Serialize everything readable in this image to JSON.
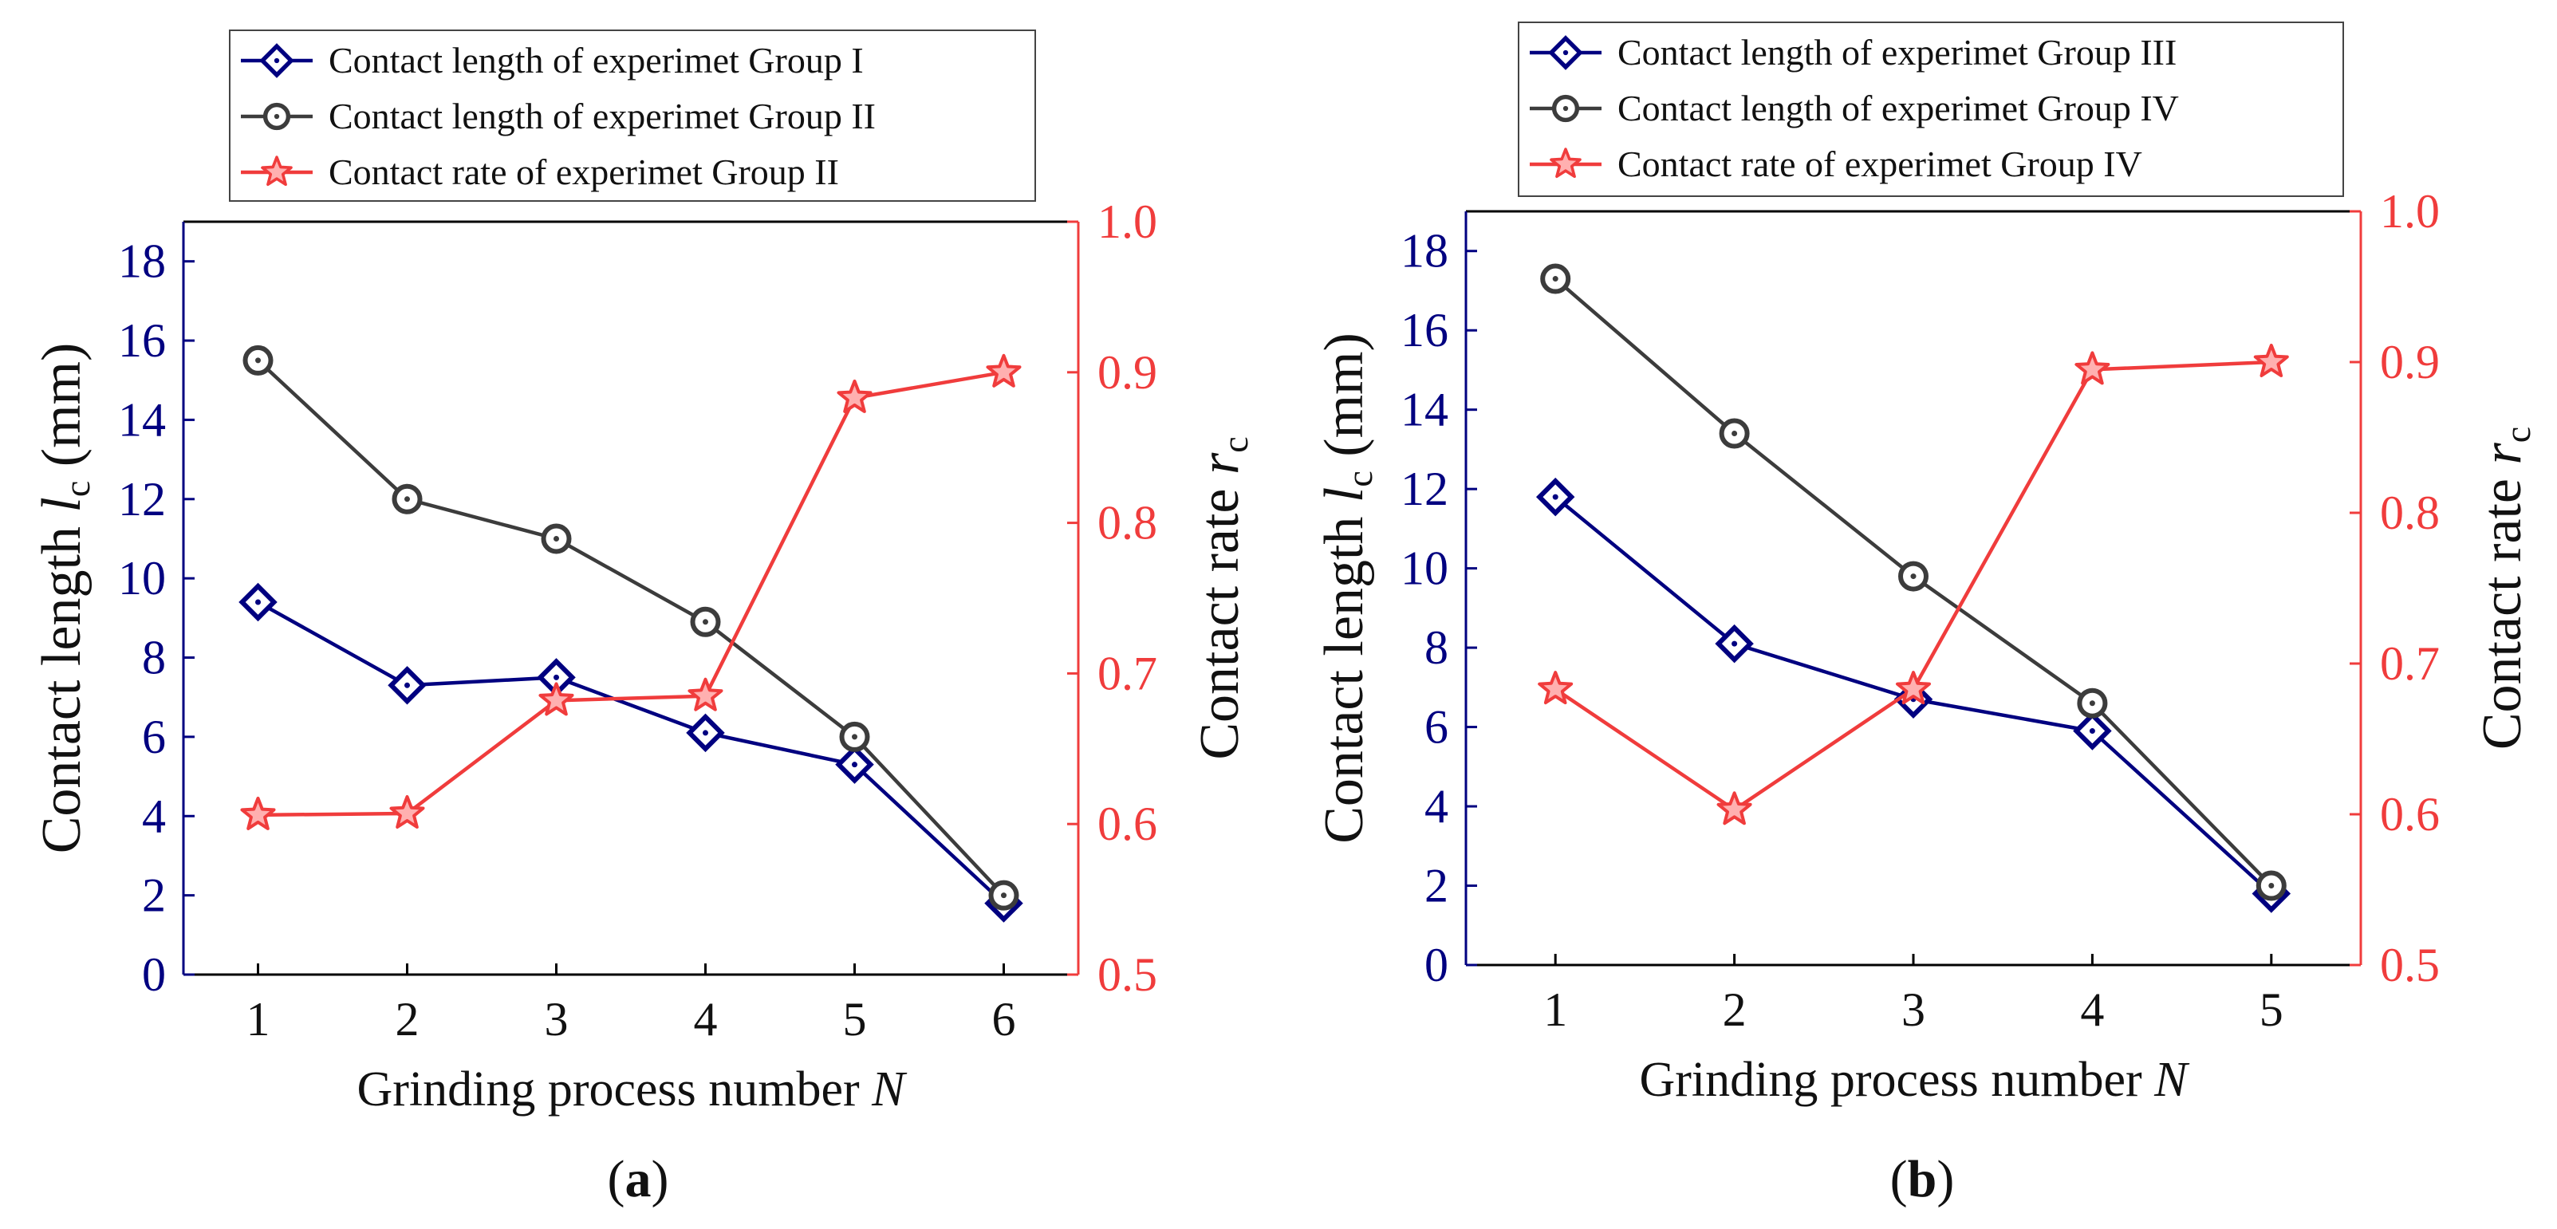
{
  "colors": {
    "group_primary": "#000080",
    "group_secondary": "#3c3c3c",
    "rate": "#f03c3c",
    "left_axis": "#000080",
    "right_axis": "#f03c3c",
    "frame": "#000000"
  },
  "chart_data": [
    {
      "panel": "a",
      "caption": {
        "open": "(",
        "letter": "a",
        "close": ")"
      },
      "type": "line",
      "x": [
        1,
        2,
        3,
        4,
        5,
        6
      ],
      "x_ticks": [
        1,
        2,
        3,
        4,
        5,
        6
      ],
      "xlim": [
        0.5,
        6.5
      ],
      "xlabel": {
        "text": "Grinding process number ",
        "var": "N"
      },
      "ylabel_left": {
        "text": "Contact length ",
        "var": "l",
        "sub": "c",
        "unit": " (mm)"
      },
      "ylim_left": [
        0,
        19
      ],
      "y_ticks_left": [
        0,
        2,
        4,
        6,
        8,
        10,
        12,
        14,
        16,
        18
      ],
      "ylabel_right": {
        "text": "Contact rate ",
        "var": "r",
        "sub": "c"
      },
      "ylim_right": [
        0.5,
        1.0
      ],
      "y_ticks_right": [
        "0.5",
        "0.6",
        "0.7",
        "0.8",
        "0.9",
        "1.0"
      ],
      "series": [
        {
          "name": "Contact length of experimet Group I",
          "axis": "left",
          "marker": "diamond",
          "color_key": "group_primary",
          "values": [
            9.4,
            7.3,
            7.5,
            6.1,
            5.3,
            1.8
          ]
        },
        {
          "name": "Contact length of experimet Group II",
          "axis": "left",
          "marker": "circle",
          "color_key": "group_secondary",
          "values": [
            15.5,
            12.0,
            11.0,
            8.9,
            6.0,
            2.0
          ]
        },
        {
          "name": "Contact rate of experimet Group II",
          "axis": "right",
          "marker": "star",
          "color_key": "rate",
          "values": [
            0.606,
            0.607,
            0.682,
            0.685,
            0.883,
            0.9
          ]
        }
      ],
      "legend": "top"
    },
    {
      "panel": "b",
      "caption": {
        "open": "(",
        "letter": "b",
        "close": ")"
      },
      "type": "line",
      "x": [
        1,
        2,
        3,
        4,
        5
      ],
      "x_ticks": [
        1,
        2,
        3,
        4,
        5
      ],
      "xlim": [
        0.5,
        5.5
      ],
      "xlabel": {
        "text": "Grinding process number ",
        "var": "N"
      },
      "ylabel_left": {
        "text": "Contact length ",
        "var": "l",
        "sub": "c",
        "unit": " (mm)"
      },
      "ylim_left": [
        0,
        19
      ],
      "y_ticks_left": [
        0,
        2,
        4,
        6,
        8,
        10,
        12,
        14,
        16,
        18
      ],
      "ylabel_right": {
        "text": "Contact rate ",
        "var": "r",
        "sub": "c"
      },
      "ylim_right": [
        0.5,
        1.0
      ],
      "y_ticks_right": [
        "0.5",
        "0.6",
        "0.7",
        "0.8",
        "0.9",
        "1.0"
      ],
      "series": [
        {
          "name": "Contact length of experimet Group III",
          "axis": "left",
          "marker": "diamond",
          "color_key": "group_primary",
          "values": [
            11.8,
            8.1,
            6.7,
            5.9,
            1.8
          ]
        },
        {
          "name": "Contact length of experimet Group IV",
          "axis": "left",
          "marker": "circle",
          "color_key": "group_secondary",
          "values": [
            17.3,
            13.4,
            9.8,
            6.6,
            2.0
          ]
        },
        {
          "name": "Contact rate of experimet Group IV",
          "axis": "right",
          "marker": "star",
          "color_key": "rate",
          "values": [
            0.683,
            0.603,
            0.683,
            0.895,
            0.9
          ]
        }
      ],
      "legend": "top"
    }
  ]
}
